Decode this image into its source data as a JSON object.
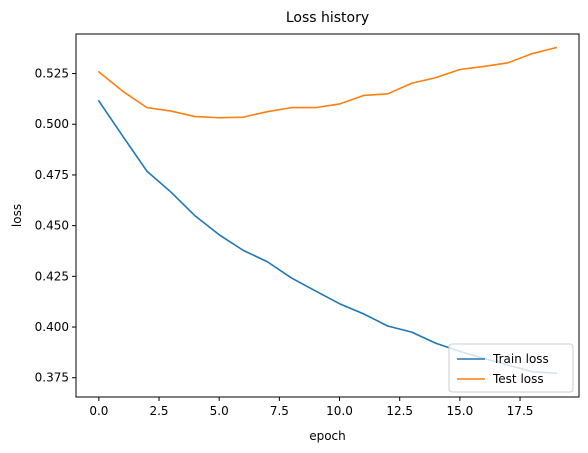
{
  "chart_data": {
    "type": "line",
    "title": "Loss history",
    "xlabel": "epoch",
    "ylabel": "loss",
    "xlim": [
      -0.95,
      19.95
    ],
    "ylim": [
      0.3655,
      0.5445
    ],
    "x_ticks": [
      0.0,
      2.5,
      5.0,
      7.5,
      10.0,
      12.5,
      15.0,
      17.5
    ],
    "x_tick_labels": [
      "0.0",
      "2.5",
      "5.0",
      "7.5",
      "10.0",
      "12.5",
      "15.0",
      "17.5"
    ],
    "y_ticks": [
      0.375,
      0.4,
      0.425,
      0.45,
      0.475,
      0.5,
      0.525
    ],
    "y_tick_labels": [
      "0.375",
      "0.400",
      "0.425",
      "0.450",
      "0.475",
      "0.500",
      "0.525"
    ],
    "grid": false,
    "legend_position": "lower-right",
    "x": [
      0,
      1,
      2,
      3,
      4,
      5,
      6,
      7,
      8,
      9,
      10,
      11,
      12,
      13,
      14,
      15,
      16,
      17,
      18,
      19
    ],
    "series": [
      {
        "name": "Train loss",
        "color": "#1f77b4",
        "values": [
          0.5115,
          0.494,
          0.4768,
          0.4665,
          0.4548,
          0.4455,
          0.4378,
          0.4322,
          0.4242,
          0.4178,
          0.4115,
          0.4065,
          0.4005,
          0.3975,
          0.392,
          0.388,
          0.3845,
          0.3812,
          0.378,
          0.3772
        ]
      },
      {
        "name": "Test loss",
        "color": "#ff7f0e",
        "values": [
          0.5258,
          0.5162,
          0.5082,
          0.5065,
          0.5038,
          0.5032,
          0.5035,
          0.5062,
          0.5082,
          0.5082,
          0.51,
          0.5142,
          0.515,
          0.5202,
          0.523,
          0.527,
          0.5285,
          0.5303,
          0.5348,
          0.5378
        ]
      }
    ]
  }
}
